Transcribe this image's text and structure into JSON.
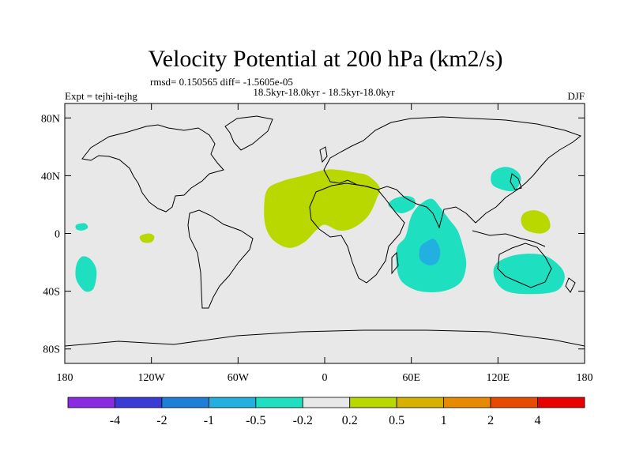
{
  "chart_data": {
    "type": "heatmap",
    "title": "Velocity Potential at 200 hPa (km2/s)",
    "stats_line": "rmsd= 0.150565 diff= -1.5605e-05",
    "period_line": "18.5kyr-18.0kyr - 18.5kyr-18.0kyr",
    "left_label": "Expt = tejhi-tejhg",
    "right_label": "DJF",
    "xlim": [
      -180,
      180
    ],
    "ylim": [
      -90,
      90
    ],
    "x_ticks": [
      {
        "value": -180,
        "label": "180"
      },
      {
        "value": -120,
        "label": "120W"
      },
      {
        "value": -60,
        "label": "60W"
      },
      {
        "value": 0,
        "label": "0"
      },
      {
        "value": 60,
        "label": "60E"
      },
      {
        "value": 120,
        "label": "120E"
      },
      {
        "value": 180,
        "label": "180"
      }
    ],
    "y_ticks": [
      {
        "value": 80,
        "label": "80N"
      },
      {
        "value": 40,
        "label": "40N"
      },
      {
        "value": 0,
        "label": "0"
      },
      {
        "value": -40,
        "label": "40S"
      },
      {
        "value": -80,
        "label": "80S"
      }
    ],
    "colorbar": {
      "levels": [
        "-4",
        "-2",
        "-1",
        "-0.5",
        "-0.2",
        "0.2",
        "0.5",
        "1",
        "2",
        "4"
      ],
      "colors": [
        "#8a2be2",
        "#3a3ad6",
        "#1e7fd8",
        "#22b0e0",
        "#1ee0c0",
        "#e8e8e8",
        "#b8d800",
        "#d8b000",
        "#e88a00",
        "#e84a00",
        "#e80000"
      ]
    },
    "regions": [
      {
        "name": "Africa-Atlantic positive",
        "level": "0.2 to 0.5",
        "color": "#b8d800",
        "points": [
          [
            -40,
            30
          ],
          [
            -30,
            36
          ],
          [
            -15,
            40
          ],
          [
            0,
            44
          ],
          [
            10,
            44
          ],
          [
            22,
            42
          ],
          [
            30,
            40
          ],
          [
            38,
            32
          ],
          [
            36,
            24
          ],
          [
            30,
            12
          ],
          [
            20,
            4
          ],
          [
            10,
            2
          ],
          [
            0,
            6
          ],
          [
            -6,
            2
          ],
          [
            -14,
            -6
          ],
          [
            -24,
            -10
          ],
          [
            -34,
            -6
          ],
          [
            -40,
            2
          ],
          [
            -42,
            14
          ]
        ]
      },
      {
        "name": "Indian Ocean negative",
        "level": "-0.5 to -0.2",
        "color": "#1ee0c0",
        "points": [
          [
            50,
            -10
          ],
          [
            56,
            -2
          ],
          [
            60,
            12
          ],
          [
            66,
            20
          ],
          [
            74,
            24
          ],
          [
            80,
            18
          ],
          [
            86,
            10
          ],
          [
            92,
            2
          ],
          [
            96,
            -10
          ],
          [
            98,
            -22
          ],
          [
            94,
            -34
          ],
          [
            82,
            -40
          ],
          [
            66,
            -40
          ],
          [
            54,
            -34
          ],
          [
            50,
            -24
          ]
        ]
      },
      {
        "name": "Indian Ocean core",
        "level": "-1 to -0.5",
        "color": "#22b0e0",
        "points": [
          [
            70,
            -6
          ],
          [
            76,
            -4
          ],
          [
            80,
            -12
          ],
          [
            78,
            -20
          ],
          [
            72,
            -22
          ],
          [
            66,
            -18
          ],
          [
            66,
            -10
          ]
        ]
      },
      {
        "name": "Arabian Sea negative",
        "level": "-0.5 to -0.2",
        "color": "#1ee0c0",
        "points": [
          [
            48,
            24
          ],
          [
            56,
            26
          ],
          [
            62,
            24
          ],
          [
            62,
            18
          ],
          [
            54,
            14
          ],
          [
            48,
            16
          ],
          [
            44,
            20
          ]
        ]
      },
      {
        "name": "East Asia negative",
        "level": "-0.5 to -0.2",
        "color": "#1ee0c0",
        "points": [
          [
            116,
            42
          ],
          [
            124,
            46
          ],
          [
            132,
            44
          ],
          [
            136,
            38
          ],
          [
            132,
            30
          ],
          [
            124,
            30
          ],
          [
            116,
            34
          ]
        ]
      },
      {
        "name": "Australia negative",
        "level": "-0.5 to -0.2",
        "color": "#1ee0c0",
        "points": [
          [
            118,
            -22
          ],
          [
            128,
            -16
          ],
          [
            142,
            -14
          ],
          [
            154,
            -16
          ],
          [
            164,
            -24
          ],
          [
            166,
            -32
          ],
          [
            160,
            -40
          ],
          [
            142,
            -42
          ],
          [
            126,
            -40
          ],
          [
            118,
            -32
          ]
        ]
      },
      {
        "name": "West Pacific positive",
        "level": "0.2 to 0.5",
        "color": "#b8d800",
        "points": [
          [
            138,
            14
          ],
          [
            146,
            16
          ],
          [
            154,
            12
          ],
          [
            156,
            4
          ],
          [
            150,
            0
          ],
          [
            140,
            2
          ],
          [
            136,
            8
          ]
        ]
      },
      {
        "name": "South Pacific negative",
        "level": "-0.5 to -0.2",
        "color": "#1ee0c0",
        "points": [
          [
            -168,
            -16
          ],
          [
            -162,
            -18
          ],
          [
            -158,
            -26
          ],
          [
            -160,
            -38
          ],
          [
            -166,
            -40
          ],
          [
            -172,
            -32
          ],
          [
            -172,
            -22
          ]
        ]
      },
      {
        "name": "Central Pacific small negative",
        "level": "-0.5 to -0.2",
        "color": "#1ee0c0",
        "points": [
          [
            -172,
            6
          ],
          [
            -166,
            7
          ],
          [
            -164,
            4
          ],
          [
            -168,
            2
          ],
          [
            -172,
            3
          ]
        ]
      },
      {
        "name": "East Pacific small positive",
        "level": "0.2 to 0.5",
        "color": "#b8d800",
        "points": [
          [
            -128,
            -2
          ],
          [
            -122,
            0
          ],
          [
            -118,
            -2
          ],
          [
            -120,
            -6
          ],
          [
            -126,
            -6
          ]
        ]
      }
    ]
  }
}
